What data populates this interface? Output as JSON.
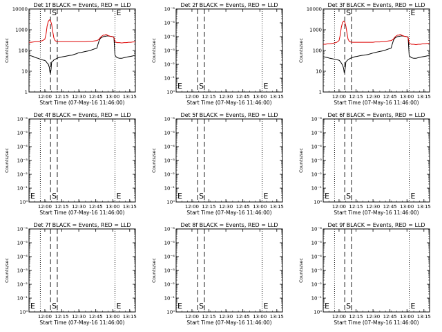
{
  "chart_data": [
    {
      "type": "line",
      "title": "Det 1f BLACK = Events, RED = LLD",
      "xlabel": "Start Time (07-May-16 11:46:00)",
      "ylabel": "Counts/sec",
      "yscale": "log",
      "ylim": [
        1,
        10000
      ],
      "ytick_labels": [
        "1",
        "10",
        "100",
        "1000",
        "10000"
      ],
      "xlim": [
        0,
        94
      ],
      "x_ticks": [
        14,
        29,
        44,
        59,
        74,
        89
      ],
      "xtick_labels": [
        "12:00",
        "12:15",
        "12:30",
        "12:45",
        "13:00",
        "13:15"
      ],
      "dotted_lines": [
        10,
        76
      ],
      "dashed_lines": [
        19,
        25
      ],
      "marker_S": "S",
      "marker_E": "E",
      "markers": [
        {
          "text": "S",
          "x": 19
        },
        {
          "text": "E",
          "x": 76
        }
      ],
      "series": [
        {
          "color": "#000000",
          "x": [
            0,
            2,
            4,
            6,
            8,
            10,
            12,
            14,
            15,
            16,
            17,
            18,
            18.5,
            19,
            19.5,
            20,
            21,
            22,
            24,
            26,
            28,
            30,
            32,
            34,
            36,
            38,
            40,
            42,
            44,
            46,
            48,
            50,
            52,
            54,
            56,
            58,
            60,
            61,
            62,
            63,
            64,
            65,
            66,
            67,
            68,
            69,
            70,
            71,
            72,
            73,
            74,
            75,
            76,
            77,
            78,
            80,
            82,
            84,
            86,
            88,
            90,
            92,
            94
          ],
          "y": [
            60,
            55,
            50,
            45,
            42,
            38,
            35,
            33,
            30,
            25,
            22,
            15,
            9,
            8,
            12,
            28,
            30,
            35,
            40,
            45,
            48,
            50,
            52,
            55,
            58,
            60,
            65,
            70,
            78,
            80,
            85,
            90,
            95,
            100,
            110,
            120,
            130,
            200,
            300,
            380,
            420,
            450,
            470,
            480,
            490,
            500,
            500,
            490,
            480,
            480,
            460,
            450,
            60,
            50,
            45,
            42,
            42,
            45,
            48,
            50,
            52,
            55,
            60
          ]
        },
        {
          "color": "#dd0000",
          "x": [
            0,
            2,
            4,
            6,
            8,
            10,
            12,
            14,
            15,
            16,
            17,
            18,
            19,
            20,
            21,
            22,
            23,
            24,
            26,
            28,
            30,
            32,
            34,
            36,
            38,
            40,
            42,
            44,
            46,
            48,
            50,
            52,
            54,
            56,
            58,
            60,
            61,
            62,
            63,
            64,
            65,
            66,
            67,
            68,
            69,
            70,
            71,
            72,
            73,
            74,
            75,
            76,
            77,
            78,
            80,
            82,
            84,
            86,
            88,
            90,
            92,
            94
          ],
          "y": [
            250,
            250,
            260,
            270,
            270,
            280,
            300,
            350,
            600,
            1500,
            2500,
            3000,
            2800,
            1800,
            800,
            400,
            300,
            280,
            270,
            270,
            270,
            270,
            270,
            270,
            270,
            270,
            270,
            270,
            270,
            270,
            270,
            280,
            280,
            280,
            290,
            300,
            320,
            350,
            420,
            480,
            520,
            560,
            540,
            600,
            560,
            520,
            500,
            480,
            480,
            460,
            420,
            260,
            250,
            240,
            240,
            230,
            240,
            240,
            250,
            250,
            260,
            260
          ]
        }
      ]
    },
    {
      "type": "line",
      "title": "Det 2f BLACK = Events, RED = LLD",
      "xlabel": "Start Time (07-May-16 11:46:00)",
      "ylabel": "Counts/sec",
      "yscale": "log",
      "ylim": [
        1e-06,
        1
      ],
      "ytick_labels": [
        "10⁰",
        "10⁻¹",
        "10⁻²",
        "10⁻³",
        "10⁻⁴",
        "10⁻⁵",
        "10⁻⁶"
      ],
      "xlim": [
        0,
        94
      ],
      "x_ticks": [
        14,
        29,
        44,
        59,
        74,
        89
      ],
      "xtick_labels": [
        "12:00",
        "12:15",
        "12:30",
        "12:45",
        "13:00",
        "13:15"
      ],
      "dotted_lines": [
        0,
        76
      ],
      "dashed_lines": [
        19,
        25
      ],
      "marker_S": "S",
      "marker_E": "E",
      "markers": [
        {
          "text": "E",
          "x": 0
        },
        {
          "text": "S",
          "x": 19
        },
        {
          "text": "E",
          "x": 76
        }
      ],
      "series": []
    },
    {
      "type": "line",
      "title": "Det 3f BLACK = Events, RED = LLD",
      "xlabel": "Start Time (07-May-16 11:46:00)",
      "ylabel": "Counts/sec",
      "yscale": "log",
      "ylim": [
        1,
        10000
      ],
      "ytick_labels": [
        "1",
        "10",
        "100",
        "1000",
        "10000"
      ],
      "xlim": [
        0,
        94
      ],
      "x_ticks": [
        14,
        29,
        44,
        59,
        74,
        89
      ],
      "xtick_labels": [
        "12:00",
        "12:15",
        "12:30",
        "12:45",
        "13:00",
        "13:15"
      ],
      "dotted_lines": [
        10,
        76
      ],
      "dashed_lines": [
        19,
        25
      ],
      "marker_S": "S",
      "marker_E": "E",
      "markers": [
        {
          "text": "S",
          "x": 19
        },
        {
          "text": "E",
          "x": 76
        }
      ],
      "series": [
        {
          "color": "#000000",
          "x": [
            0,
            2,
            4,
            6,
            8,
            10,
            12,
            14,
            15,
            16,
            17,
            18,
            18.5,
            19,
            19.5,
            20,
            21,
            22,
            24,
            26,
            28,
            30,
            32,
            34,
            36,
            38,
            40,
            42,
            44,
            46,
            48,
            50,
            52,
            54,
            56,
            58,
            60,
            61,
            62,
            63,
            64,
            65,
            66,
            67,
            68,
            69,
            70,
            71,
            72,
            73,
            74,
            75,
            76,
            77,
            78,
            80,
            82,
            84,
            86,
            88,
            90,
            92,
            94
          ],
          "y": [
            50,
            48,
            45,
            42,
            40,
            38,
            36,
            34,
            30,
            25,
            20,
            14,
            9,
            10,
            14,
            28,
            32,
            36,
            42,
            46,
            50,
            52,
            55,
            58,
            60,
            62,
            65,
            70,
            75,
            80,
            85,
            90,
            95,
            100,
            110,
            120,
            130,
            200,
            300,
            380,
            420,
            450,
            470,
            480,
            490,
            500,
            500,
            490,
            480,
            480,
            460,
            450,
            55,
            50,
            45,
            42,
            42,
            45,
            48,
            50,
            52,
            55,
            60
          ]
        },
        {
          "color": "#dd0000",
          "x": [
            0,
            2,
            4,
            6,
            8,
            10,
            12,
            14,
            15,
            16,
            17,
            18,
            19,
            20,
            21,
            22,
            23,
            24,
            26,
            28,
            30,
            32,
            34,
            36,
            38,
            40,
            42,
            44,
            46,
            48,
            50,
            52,
            54,
            56,
            58,
            60,
            61,
            62,
            63,
            64,
            65,
            66,
            67,
            68,
            69,
            70,
            71,
            72,
            73,
            74,
            75,
            76,
            77,
            78,
            80,
            82,
            84,
            86,
            88,
            90,
            92,
            94
          ],
          "y": [
            200,
            200,
            210,
            210,
            220,
            230,
            250,
            300,
            550,
            1300,
            2200,
            2600,
            2400,
            1500,
            700,
            350,
            280,
            260,
            250,
            250,
            250,
            250,
            250,
            250,
            250,
            250,
            250,
            250,
            260,
            260,
            260,
            270,
            270,
            280,
            290,
            300,
            320,
            350,
            420,
            480,
            520,
            560,
            540,
            600,
            560,
            520,
            500,
            480,
            480,
            460,
            420,
            220,
            210,
            200,
            200,
            190,
            200,
            200,
            210,
            210,
            220,
            220
          ]
        }
      ]
    },
    {
      "type": "line",
      "title": "Det 4f BLACK = Events, RED = LLD",
      "xlabel": "Start Time (07-May-16 11:46:00)",
      "ylabel": "Counts/sec",
      "yscale": "log",
      "ylim": [
        1e-06,
        1
      ],
      "ytick_labels": [
        "10⁰",
        "10⁻¹",
        "10⁻²",
        "10⁻³",
        "10⁻⁴",
        "10⁻⁵",
        "10⁻⁶"
      ],
      "xlim": [
        0,
        94
      ],
      "x_ticks": [
        14,
        29,
        44,
        59,
        74,
        89
      ],
      "xtick_labels": [
        "12:00",
        "12:15",
        "12:30",
        "12:45",
        "13:00",
        "13:15"
      ],
      "dotted_lines": [
        10,
        76
      ],
      "dashed_lines": [
        19,
        25
      ],
      "marker_S": "S",
      "marker_E": "E",
      "markers": [
        {
          "text": "E",
          "x": 0
        },
        {
          "text": "S",
          "x": 19
        },
        {
          "text": "E",
          "x": 76
        }
      ],
      "series": []
    },
    {
      "type": "line",
      "title": "Det 5f BLACK = Events, RED = LLD",
      "xlabel": "Start Time (07-May-16 11:46:00)",
      "ylabel": "Counts/sec",
      "yscale": "log",
      "ylim": [
        1e-06,
        1
      ],
      "ytick_labels": [
        "10⁰",
        "10⁻¹",
        "10⁻²",
        "10⁻³",
        "10⁻⁴",
        "10⁻⁵",
        "10⁻⁶"
      ],
      "xlim": [
        0,
        94
      ],
      "x_ticks": [
        14,
        29,
        44,
        59,
        74,
        89
      ],
      "xtick_labels": [
        "12:00",
        "12:15",
        "12:30",
        "12:45",
        "13:00",
        "13:15"
      ],
      "dotted_lines": [
        0,
        76
      ],
      "dashed_lines": [
        19,
        25
      ],
      "marker_S": "S",
      "marker_E": "E",
      "markers": [
        {
          "text": "E",
          "x": 0
        },
        {
          "text": "S",
          "x": 19
        },
        {
          "text": "E",
          "x": 76
        }
      ],
      "series": []
    },
    {
      "type": "line",
      "title": "Det 6f BLACK = Events, RED = LLD",
      "xlabel": "Start Time (07-May-16 11:46:00)",
      "ylabel": "Counts/sec",
      "yscale": "log",
      "ylim": [
        1e-06,
        1
      ],
      "ytick_labels": [
        "10⁰",
        "10⁻¹",
        "10⁻²",
        "10⁻³",
        "10⁻⁴",
        "10⁻⁵",
        "10⁻⁶"
      ],
      "xlim": [
        0,
        94
      ],
      "x_ticks": [
        14,
        29,
        44,
        59,
        74,
        89
      ],
      "xtick_labels": [
        "12:00",
        "12:15",
        "12:30",
        "12:45",
        "13:00",
        "13:15"
      ],
      "dotted_lines": [
        10,
        76
      ],
      "dashed_lines": [
        19,
        25
      ],
      "marker_S": "S",
      "marker_E": "E",
      "markers": [
        {
          "text": "E",
          "x": 0
        },
        {
          "text": "S",
          "x": 19
        },
        {
          "text": "E",
          "x": 76
        }
      ],
      "series": []
    },
    {
      "type": "line",
      "title": "Det 7f BLACK = Events, RED = LLD",
      "xlabel": "Start Time (07-May-16 11:46:00)",
      "ylabel": "Counts/sec",
      "yscale": "log",
      "ylim": [
        1e-06,
        1
      ],
      "ytick_labels": [
        "10⁰",
        "10⁻¹",
        "10⁻²",
        "10⁻³",
        "10⁻⁴",
        "10⁻⁵",
        "10⁻⁶"
      ],
      "xlim": [
        0,
        94
      ],
      "x_ticks": [
        14,
        29,
        44,
        59,
        74,
        89
      ],
      "xtick_labels": [
        "12:00",
        "12:15",
        "12:30",
        "12:45",
        "13:00",
        "13:15"
      ],
      "dotted_lines": [
        10,
        76
      ],
      "dashed_lines": [
        19,
        25
      ],
      "marker_S": "S",
      "marker_E": "E",
      "markers": [
        {
          "text": "E",
          "x": 0
        },
        {
          "text": "S",
          "x": 19
        },
        {
          "text": "E",
          "x": 76
        }
      ],
      "series": []
    },
    {
      "type": "line",
      "title": "Det 8f BLACK = Events, RED = LLD",
      "xlabel": "Start Time (07-May-16 11:46:00)",
      "ylabel": "Counts/sec",
      "yscale": "log",
      "ylim": [
        1e-06,
        1
      ],
      "ytick_labels": [
        "10⁰",
        "10⁻¹",
        "10⁻²",
        "10⁻³",
        "10⁻⁴",
        "10⁻⁵",
        "10⁻⁶"
      ],
      "xlim": [
        0,
        94
      ],
      "x_ticks": [
        14,
        29,
        44,
        59,
        74,
        89
      ],
      "xtick_labels": [
        "12:00",
        "12:15",
        "12:30",
        "12:45",
        "13:00",
        "13:15"
      ],
      "dotted_lines": [
        0,
        76
      ],
      "dashed_lines": [
        19,
        25
      ],
      "marker_S": "S",
      "marker_E": "E",
      "markers": [
        {
          "text": "E",
          "x": 0
        },
        {
          "text": "S",
          "x": 19
        },
        {
          "text": "E",
          "x": 76
        }
      ],
      "series": []
    },
    {
      "type": "line",
      "title": "Det 9f BLACK = Events, RED = LLD",
      "xlabel": "Start Time (07-May-16 11:46:00)",
      "ylabel": "Counts/sec",
      "yscale": "log",
      "ylim": [
        1e-06,
        1
      ],
      "ytick_labels": [
        "10⁰",
        "10⁻¹",
        "10⁻²",
        "10⁻³",
        "10⁻⁴",
        "10⁻⁵",
        "10⁻⁶"
      ],
      "xlim": [
        0,
        94
      ],
      "x_ticks": [
        14,
        29,
        44,
        59,
        74,
        89
      ],
      "xtick_labels": [
        "12:00",
        "12:15",
        "12:30",
        "12:45",
        "13:00",
        "13:15"
      ],
      "dotted_lines": [
        10,
        76
      ],
      "dashed_lines": [
        19,
        25
      ],
      "marker_S": "S",
      "marker_E": "E",
      "markers": [
        {
          "text": "E",
          "x": 0
        },
        {
          "text": "S",
          "x": 19
        },
        {
          "text": "E",
          "x": 76
        }
      ],
      "series": []
    }
  ]
}
